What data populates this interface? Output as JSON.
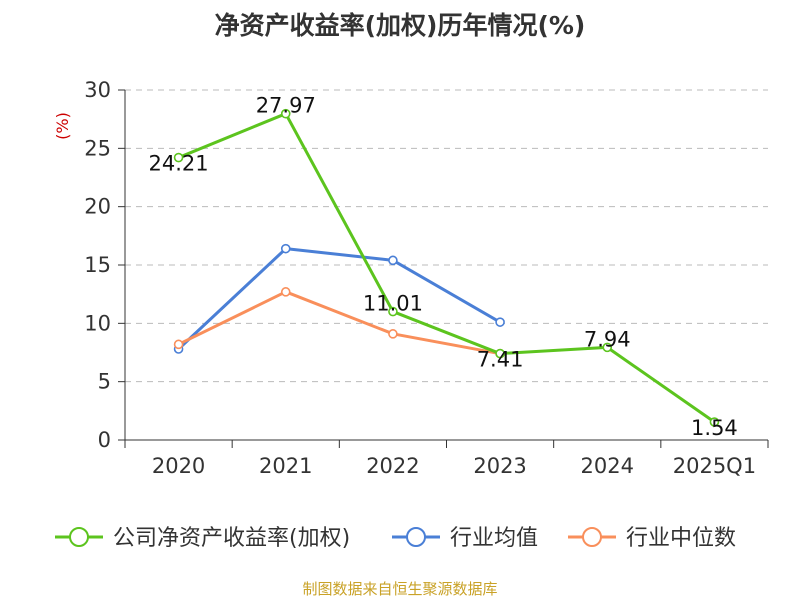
{
  "title": "净资产收益率(加权)历年情况(%)",
  "source": "制图数据来自恒生聚源数据库",
  "chart_data": {
    "type": "line",
    "title": "净资产收益率(加权)历年情况(%)",
    "ylabel": "(%)",
    "ylim": [
      0,
      30
    ],
    "yticks": [
      0,
      5,
      10,
      15,
      20,
      25,
      30
    ],
    "grid": true,
    "legend_position": "bottom",
    "categories": [
      "2020",
      "2021",
      "2022",
      "2023",
      "2024",
      "2025Q1"
    ],
    "series": [
      {
        "name": "公司净资产收益率(加权)",
        "color": "#5cc41e",
        "values": [
          24.21,
          27.97,
          11.01,
          7.41,
          7.94,
          1.54
        ],
        "labels": [
          "24.21",
          "27.97",
          "11.01",
          "7.41",
          "7.94",
          "1.54"
        ]
      },
      {
        "name": "行业均值",
        "color": "#4a7fd6",
        "values": [
          7.8,
          16.4,
          15.4,
          10.1,
          null,
          null
        ]
      },
      {
        "name": "行业中位数",
        "color": "#f98f5b",
        "values": [
          8.2,
          12.7,
          9.1,
          7.4,
          null,
          null
        ]
      }
    ]
  }
}
